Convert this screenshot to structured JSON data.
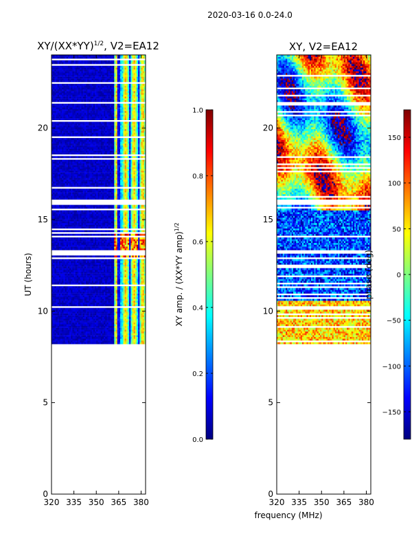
{
  "figure": {
    "suptitle": "2020-03-16 0.0-24.0",
    "xlabel": "frequency (MHz)"
  },
  "chart_data": [
    {
      "type": "heatmap",
      "title_main": "XY/(XX*YY)",
      "title_sup": "1/2",
      "title_rest": ", V2=EA12",
      "ylabel": "UT (hours)",
      "xlim": [
        320,
        383
      ],
      "ylim": [
        0,
        24
      ],
      "xticks": [
        320,
        335,
        350,
        365,
        380
      ],
      "yticks": [
        0,
        5,
        10,
        15,
        20
      ],
      "data_ut_range": [
        8.2,
        24
      ],
      "flagged_channels_below_MHz": 362,
      "value_range": [
        0,
        1
      ],
      "colorbar": {
        "label_main": "XY amp. / (XX*YY amp)",
        "label_sup": "1/2",
        "ticks": [
          "0.0",
          "0.2",
          "0.4",
          "0.6",
          "0.8",
          "1.0"
        ],
        "tick_values": [
          0,
          0.2,
          0.4,
          0.6,
          0.8,
          1.0
        ],
        "vmin": 0,
        "vmax": 1,
        "colormap": "jet"
      }
    },
    {
      "type": "heatmap",
      "title": "XY, V2=EA12",
      "xlim": [
        320,
        383
      ],
      "ylim": [
        0,
        24
      ],
      "xticks": [
        320,
        335,
        350,
        365,
        380
      ],
      "yticks": [
        0,
        5,
        10,
        15,
        20
      ],
      "data_ut_range": [
        8.2,
        24
      ],
      "value_range": [
        -180,
        180
      ],
      "colorbar": {
        "label": "phase (deg)",
        "ticks": [
          "150",
          "100",
          "50",
          "0",
          "−50",
          "−100",
          "−150"
        ],
        "tick_values": [
          150,
          100,
          50,
          0,
          -50,
          -100,
          -150
        ],
        "vmin": -180,
        "vmax": 180,
        "colormap": "jet"
      }
    }
  ],
  "colors": {
    "jet": [
      "#00007f",
      "#0000ff",
      "#007fff",
      "#00ffff",
      "#7fff7f",
      "#ffff00",
      "#ff7f00",
      "#ff0000",
      "#7f0000"
    ],
    "axis": "#000000",
    "background": "#ffffff"
  }
}
